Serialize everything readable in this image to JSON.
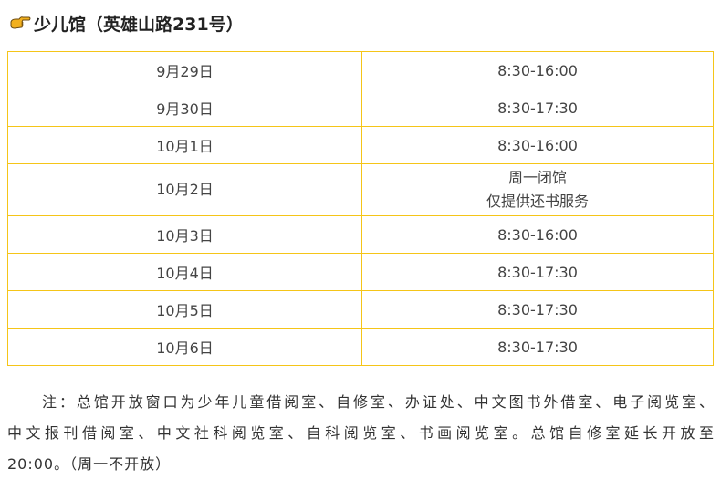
{
  "heading": {
    "icon": "pointing-hand-icon",
    "text": "少儿馆（英雄山路231号）"
  },
  "colors": {
    "table_border": "#f5c518",
    "icon": "#f2b01e"
  },
  "schedule": [
    {
      "date": "9月29日",
      "hours": "8:30-16:00"
    },
    {
      "date": "9月30日",
      "hours": "8:30-17:30"
    },
    {
      "date": "10月1日",
      "hours": "8:30-16:00"
    },
    {
      "date": "10月2日",
      "hours_line1": "周一闭馆",
      "hours_line2": "仅提供还书服务"
    },
    {
      "date": "10月3日",
      "hours": "8:30-16:00"
    },
    {
      "date": "10月4日",
      "hours": "8:30-17:30"
    },
    {
      "date": "10月5日",
      "hours": "8:30-17:30"
    },
    {
      "date": "10月6日",
      "hours": "8:30-17:30"
    }
  ],
  "note": {
    "lines": [
      "注：总馆开放窗口为少年儿童借阅室、自修室、办证处、中文图书外借室、电子阅览室、",
      "中文报刊借阅室、中文社科阅览室、自科阅览室、书画阅览室。总馆自修室延长开放至",
      "20:00。（周一不开放）"
    ]
  }
}
